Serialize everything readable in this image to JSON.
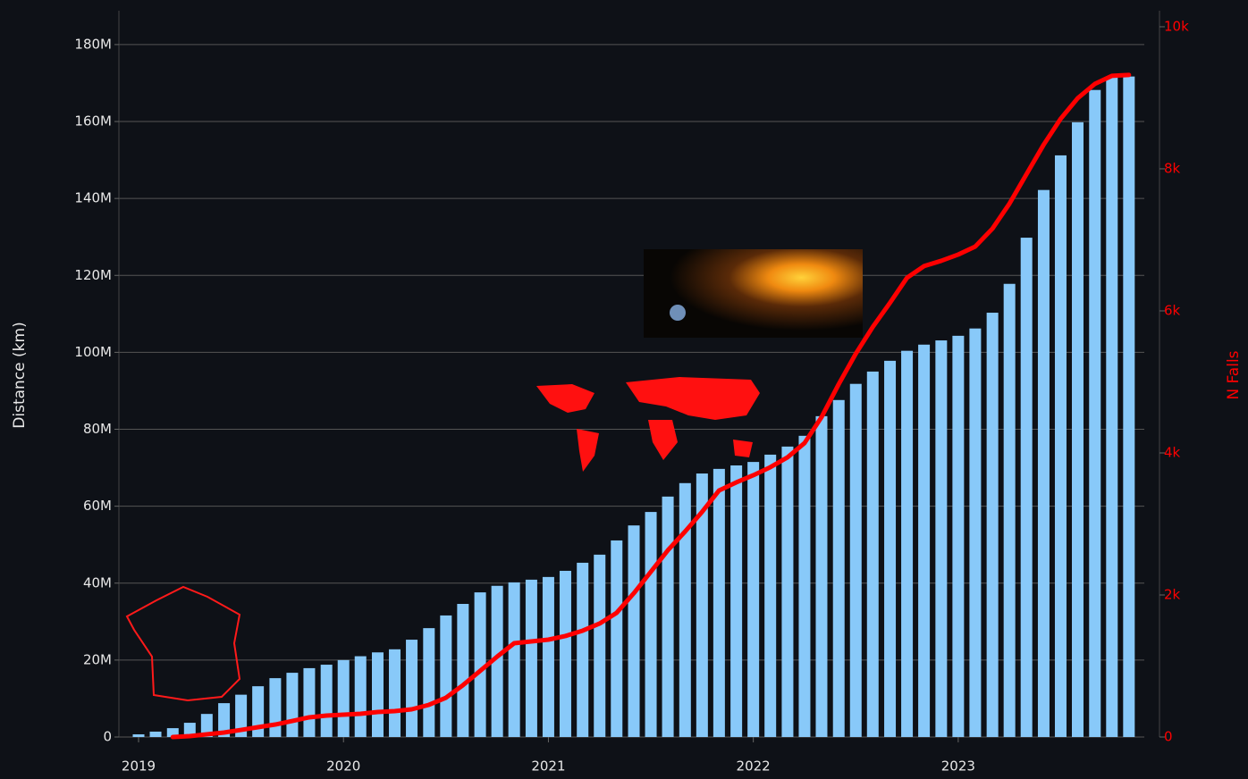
{
  "chart_data": {
    "type": "bar",
    "y_label": "Distance (km)",
    "y2_label": "N Falls",
    "x": [
      2019,
      2019.083,
      2019.167,
      2019.25,
      2019.333,
      2019.417,
      2019.5,
      2019.583,
      2019.667,
      2019.75,
      2019.833,
      2019.917,
      2020,
      2020.083,
      2020.167,
      2020.25,
      2020.333,
      2020.417,
      2020.5,
      2020.583,
      2020.667,
      2020.75,
      2020.833,
      2020.917,
      2021,
      2021.083,
      2021.167,
      2021.25,
      2021.333,
      2021.417,
      2021.5,
      2021.583,
      2021.667,
      2021.75,
      2021.833,
      2021.917,
      2022,
      2022.083,
      2022.167,
      2022.25,
      2022.333,
      2022.417,
      2022.5,
      2022.583,
      2022.667,
      2022.75,
      2022.833,
      2022.917,
      2023,
      2023.083,
      2023.167,
      2023.25,
      2023.333,
      2023.417,
      2023.5,
      2023.583,
      2023.667,
      2023.75,
      2023.833
    ],
    "series": [
      {
        "type": "bar",
        "color": "#88c9f9",
        "values": [
          700000,
          1400000,
          2300000,
          3700000,
          6000000,
          8800000,
          11000000,
          13200000,
          15300000,
          16700000,
          17900000,
          18800000,
          20000000,
          21000000,
          22000000,
          22800000,
          25300000,
          28300000,
          31600000,
          34600000,
          37600000,
          39300000,
          40200000,
          40900000,
          41600000,
          43200000,
          45300000,
          47400000,
          51100000,
          55000000,
          58500000,
          62500000,
          66000000,
          68500000,
          69700000,
          70600000,
          71500000,
          73400000,
          75500000,
          78300000,
          83400000,
          87600000,
          91800000,
          95000000,
          97800000,
          100400000,
          102000000,
          103100000,
          104300000,
          106200000,
          110300000,
          117800000,
          129800000,
          142200000,
          151200000,
          159800000,
          168200000,
          171700000,
          171700000
        ]
      },
      {
        "type": "line",
        "axis": "y2",
        "color": "#ff0000",
        "values": [
          null,
          null,
          0,
          13,
          38,
          63,
          100,
          138,
          176,
          226,
          277,
          302,
          315,
          327,
          352,
          365,
          390,
          453,
          553,
          730,
          931,
          1132,
          1321,
          1346,
          1371,
          1422,
          1497,
          1598,
          1749,
          2025,
          2327,
          2629,
          2893,
          3170,
          3472,
          3585,
          3686,
          3799,
          3938,
          4139,
          4504,
          4969,
          5397,
          5774,
          6114,
          6466,
          6630,
          6705,
          6793,
          6906,
          7158,
          7510,
          7925,
          8340,
          8705,
          8994,
          9196,
          9309,
          9322
        ]
      }
    ],
    "xlim": [
      2018.904,
      2023.908
    ],
    "xticks": [
      2019,
      2020,
      2021,
      2022,
      2023
    ],
    "ylim": [
      0,
      188800000
    ],
    "yticks": [
      0,
      {
        "value": 20000000,
        "label": "20M"
      },
      {
        "value": 40000000,
        "label": "40M"
      },
      {
        "value": 60000000,
        "label": "60M"
      },
      {
        "value": 80000000,
        "label": "80M"
      },
      {
        "value": 100000000,
        "label": "100M"
      },
      {
        "value": 120000000,
        "label": "120M"
      },
      {
        "value": 140000000,
        "label": "140M"
      },
      {
        "value": 160000000,
        "label": "160M"
      },
      {
        "value": 180000000,
        "label": "180M"
      }
    ],
    "y2lim": [
      0,
      10226
    ],
    "y2ticks": [
      0,
      {
        "value": 2000,
        "label": "2k"
      },
      {
        "value": 4000,
        "label": "4k"
      },
      {
        "value": 6000,
        "label": "6k"
      },
      {
        "value": 8000,
        "label": "8k"
      },
      {
        "value": 10000,
        "label": "10k"
      }
    ],
    "grid": true
  }
}
